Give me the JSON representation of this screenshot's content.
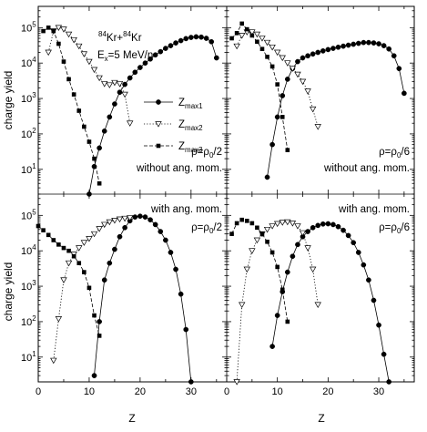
{
  "figure": {
    "ylabel": "charge yield",
    "xlabel": "Z",
    "reaction_label": {
      "a1": "84",
      "n1": "Kr+",
      "a2": "84",
      "n2": "Kr"
    },
    "energy_label": {
      "prefix": "E",
      "sub": "x",
      "suffix": "=5 MeV/n"
    },
    "legend": [
      {
        "base": "Z",
        "sub": "max1",
        "marker": "circle",
        "dash": "solid"
      },
      {
        "base": "Z",
        "sub": "max2",
        "marker": "triangle-down-open",
        "dash": "dotted"
      },
      {
        "base": "Z",
        "sub": "max3",
        "marker": "square",
        "dash": "dashed"
      }
    ],
    "x_tick_labels": [
      "0",
      "10",
      "20",
      "30"
    ],
    "y_tick_labels": [
      "10",
      "10",
      "10",
      "10",
      "10"
    ],
    "y_tick_exponents": [
      "1",
      "2",
      "3",
      "4",
      "5"
    ]
  },
  "chart_data": [
    {
      "type": "line",
      "panel": "top-left",
      "annotations": {
        "rho_prefix": "ρ=ρ",
        "rho_sub": "0",
        "rho_suffix": "/2",
        "momentum": "without ang. mom."
      },
      "xlim": [
        0,
        37
      ],
      "ylim_log10": [
        0.3,
        5.6
      ],
      "yscale": "log",
      "series": [
        {
          "key": "max1",
          "x": [
            10,
            11,
            12,
            13,
            14,
            15,
            16,
            17,
            18,
            19,
            20,
            21,
            22,
            23,
            24,
            25,
            26,
            27,
            28,
            29,
            30,
            31,
            32,
            33,
            34,
            35
          ],
          "y": [
            2,
            12,
            40,
            120,
            300,
            700,
            1500,
            2500,
            3800,
            5500,
            7500,
            10000,
            13000,
            17000,
            21000,
            26000,
            31000,
            37000,
            43000,
            49000,
            53000,
            55000,
            54000,
            50000,
            40000,
            14000
          ]
        },
        {
          "key": "max2",
          "x": [
            2,
            3,
            4,
            5,
            6,
            7,
            8,
            9,
            10,
            11,
            12,
            13,
            14,
            15,
            16,
            17,
            18
          ],
          "y": [
            20000,
            80000,
            100000,
            90000,
            65000,
            45000,
            30000,
            18000,
            11000,
            6500,
            3800,
            2600,
            2400,
            2800,
            2600,
            1300,
            200
          ]
        },
        {
          "key": "max3",
          "x": [
            1,
            2,
            3,
            4,
            5,
            6,
            7,
            8,
            9,
            10,
            11,
            12
          ],
          "y": [
            80000,
            100000,
            80000,
            35000,
            11000,
            3500,
            1300,
            450,
            160,
            60,
            20,
            4
          ]
        }
      ]
    },
    {
      "type": "line",
      "panel": "top-right",
      "annotations": {
        "rho_prefix": "ρ=ρ",
        "rho_sub": "0",
        "rho_suffix": "/6",
        "momentum": "without ang. mom."
      },
      "xlim": [
        0,
        37
      ],
      "ylim_log10": [
        0.3,
        5.6
      ],
      "yscale": "log",
      "series": [
        {
          "key": "max1",
          "x": [
            8,
            9,
            10,
            11,
            12,
            13,
            14,
            15,
            16,
            17,
            18,
            19,
            20,
            21,
            22,
            23,
            24,
            25,
            26,
            27,
            28,
            29,
            30,
            31,
            32,
            33,
            34,
            35
          ],
          "y": [
            6,
            50,
            300,
            1200,
            3500,
            7000,
            11000,
            14000,
            16000,
            18000,
            20000,
            22000,
            24000,
            26000,
            28000,
            30000,
            32000,
            34000,
            36000,
            38000,
            38000,
            37000,
            35000,
            31000,
            25000,
            16000,
            7000,
            1400
          ]
        },
        {
          "key": "max2",
          "x": [
            2,
            3,
            4,
            5,
            6,
            7,
            8,
            9,
            10,
            11,
            12,
            13,
            14,
            15,
            16,
            17,
            18
          ],
          "y": [
            30000,
            60000,
            75000,
            75000,
            65000,
            50000,
            38000,
            28000,
            20000,
            14000,
            10000,
            7000,
            4800,
            3000,
            1600,
            500,
            160
          ]
        },
        {
          "key": "max3",
          "x": [
            1,
            2,
            3,
            4,
            5,
            6,
            7,
            8,
            9,
            10,
            11,
            12
          ],
          "y": [
            50000,
            70000,
            130000,
            90000,
            60000,
            40000,
            25000,
            15000,
            8000,
            2500,
            300,
            35
          ]
        }
      ]
    },
    {
      "type": "line",
      "panel": "bottom-left",
      "annotations": {
        "rho_prefix": "ρ=ρ",
        "rho_sub": "0",
        "rho_suffix": "/2",
        "momentum": "with ang. mom."
      },
      "xlim": [
        0,
        37
      ],
      "ylim_log10": [
        0.3,
        5.6
      ],
      "yscale": "log",
      "series": [
        {
          "key": "max1",
          "x": [
            11,
            12,
            13,
            14,
            15,
            16,
            17,
            18,
            19,
            20,
            21,
            22,
            23,
            24,
            25,
            26,
            27,
            28,
            29,
            30
          ],
          "y": [
            3,
            100,
            1500,
            4500,
            11000,
            25000,
            45000,
            70000,
            90000,
            95000,
            90000,
            75000,
            55000,
            35000,
            20000,
            9000,
            3000,
            600,
            60,
            2
          ]
        },
        {
          "key": "max2",
          "x": [
            3,
            4,
            5,
            6,
            7,
            8,
            9,
            10,
            11,
            12,
            13,
            14,
            15,
            16,
            17,
            18
          ],
          "y": [
            8,
            120,
            1500,
            4500,
            8000,
            12000,
            17000,
            22000,
            30000,
            42000,
            55000,
            65000,
            72000,
            78000,
            82000,
            85000
          ]
        },
        {
          "key": "max3",
          "x": [
            0,
            1,
            2,
            3,
            4,
            5,
            6,
            7,
            8,
            9,
            10,
            11,
            12
          ],
          "y": [
            50000,
            38000,
            28000,
            20000,
            15000,
            12000,
            10000,
            7000,
            4500,
            2500,
            900,
            150,
            40
          ]
        }
      ]
    },
    {
      "type": "line",
      "panel": "bottom-right",
      "annotations": {
        "rho_prefix": "ρ=ρ",
        "rho_sub": "0",
        "rho_suffix": "/6",
        "momentum": "with ang. mom."
      },
      "xlim": [
        0,
        37
      ],
      "ylim_log10": [
        0.3,
        5.6
      ],
      "yscale": "log",
      "series": [
        {
          "key": "max1",
          "x": [
            9,
            10,
            11,
            12,
            13,
            14,
            15,
            16,
            17,
            18,
            19,
            20,
            21,
            22,
            23,
            24,
            25,
            26,
            27,
            28,
            29,
            30,
            31,
            32
          ],
          "y": [
            20,
            150,
            700,
            2500,
            7000,
            15000,
            25000,
            35000,
            45000,
            52000,
            57000,
            58000,
            55000,
            48000,
            38000,
            27000,
            17000,
            9000,
            4000,
            1500,
            400,
            80,
            12,
            2
          ]
        },
        {
          "key": "max2",
          "x": [
            2,
            3,
            4,
            5,
            6,
            7,
            8,
            9,
            10,
            11,
            12,
            13,
            14,
            15,
            16,
            17,
            18
          ],
          "y": [
            2,
            300,
            3000,
            10000,
            20000,
            30000,
            40000,
            50000,
            58000,
            63000,
            65000,
            60000,
            50000,
            32000,
            12000,
            3000,
            300
          ]
        },
        {
          "key": "max3",
          "x": [
            1,
            2,
            3,
            4,
            5,
            6,
            7,
            8,
            9,
            10,
            11,
            12
          ],
          "y": [
            30000,
            60000,
            75000,
            70000,
            60000,
            45000,
            30000,
            18000,
            9000,
            3500,
            800,
            100
          ]
        }
      ]
    }
  ]
}
